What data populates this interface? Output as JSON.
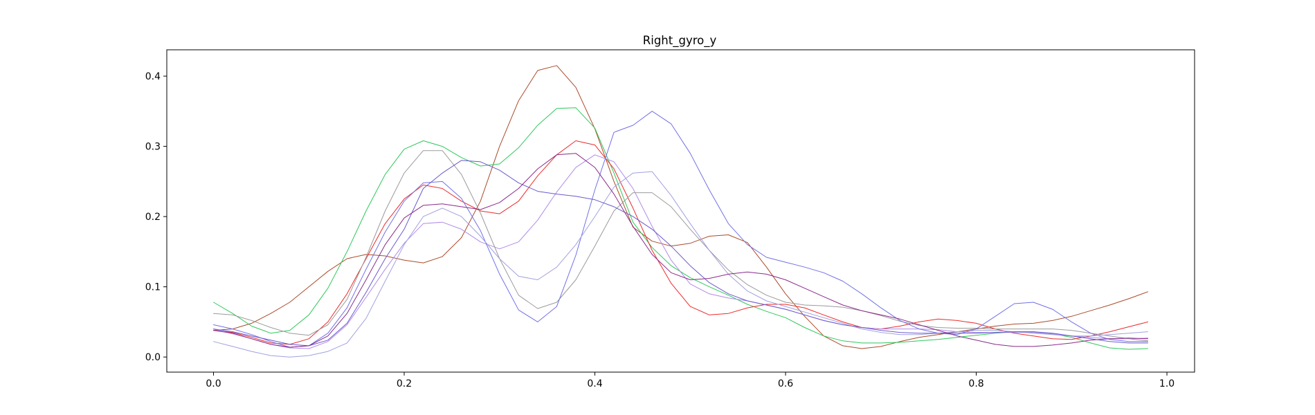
{
  "chart_data": {
    "type": "line",
    "title": "Right_gyro_y",
    "xlabel": "",
    "ylabel": "",
    "xlim": [
      -0.049,
      1.029
    ],
    "ylim": [
      -0.0215,
      0.4375
    ],
    "xticks": [
      0.0,
      0.2,
      0.4,
      0.6,
      0.8,
      1.0
    ],
    "xtick_labels": [
      "0.0",
      "0.2",
      "0.4",
      "0.6",
      "0.8",
      "1.0"
    ],
    "yticks": [
      0.0,
      0.1,
      0.2,
      0.3,
      0.4
    ],
    "ytick_labels": [
      "0.0",
      "0.1",
      "0.2",
      "0.3",
      "0.4"
    ],
    "grid": false,
    "legend": "none",
    "x": [
      0.0,
      0.02,
      0.04,
      0.06,
      0.08,
      0.1,
      0.12,
      0.14,
      0.16,
      0.18,
      0.2,
      0.22,
      0.24,
      0.26,
      0.28,
      0.3,
      0.32,
      0.34,
      0.36,
      0.38,
      0.4,
      0.42,
      0.44,
      0.46,
      0.48,
      0.5,
      0.52,
      0.54,
      0.56,
      0.58,
      0.6,
      0.62,
      0.64,
      0.66,
      0.68,
      0.7,
      0.72,
      0.74,
      0.76,
      0.78,
      0.8,
      0.82,
      0.84,
      0.86,
      0.88,
      0.9,
      0.92,
      0.94,
      0.96,
      0.98
    ],
    "series": [
      {
        "color": "#aa4a2a",
        "values": [
          0.038,
          0.04,
          0.048,
          0.062,
          0.078,
          0.1,
          0.122,
          0.14,
          0.146,
          0.144,
          0.138,
          0.134,
          0.143,
          0.17,
          0.222,
          0.3,
          0.365,
          0.408,
          0.415,
          0.384,
          0.325,
          0.25,
          0.185,
          0.165,
          0.158,
          0.162,
          0.172,
          0.174,
          0.163,
          0.128,
          0.09,
          0.058,
          0.03,
          0.016,
          0.012,
          0.015,
          0.022,
          0.028,
          0.032,
          0.036,
          0.04,
          0.044,
          0.047,
          0.048,
          0.052,
          0.058,
          0.066,
          0.074,
          0.083,
          0.093
        ]
      },
      {
        "color": "#2ec85a",
        "values": [
          0.078,
          0.062,
          0.044,
          0.034,
          0.038,
          0.06,
          0.098,
          0.15,
          0.208,
          0.26,
          0.296,
          0.308,
          0.3,
          0.284,
          0.272,
          0.275,
          0.298,
          0.33,
          0.354,
          0.355,
          0.326,
          0.262,
          0.192,
          0.156,
          0.13,
          0.113,
          0.1,
          0.088,
          0.075,
          0.065,
          0.056,
          0.042,
          0.03,
          0.023,
          0.02,
          0.02,
          0.021,
          0.023,
          0.025,
          0.028,
          0.031,
          0.034,
          0.036,
          0.036,
          0.033,
          0.028,
          0.02,
          0.013,
          0.011,
          0.012
        ]
      },
      {
        "color": "#ec2a2a",
        "values": [
          0.038,
          0.035,
          0.028,
          0.02,
          0.018,
          0.026,
          0.05,
          0.09,
          0.14,
          0.19,
          0.225,
          0.245,
          0.24,
          0.222,
          0.208,
          0.204,
          0.222,
          0.258,
          0.288,
          0.308,
          0.302,
          0.268,
          0.212,
          0.152,
          0.105,
          0.072,
          0.06,
          0.062,
          0.07,
          0.075,
          0.075,
          0.07,
          0.06,
          0.05,
          0.042,
          0.04,
          0.044,
          0.05,
          0.054,
          0.052,
          0.048,
          0.04,
          0.034,
          0.03,
          0.026,
          0.025,
          0.03,
          0.036,
          0.043,
          0.05
        ]
      },
      {
        "color": "#b08ae8",
        "values": [
          0.04,
          0.033,
          0.026,
          0.018,
          0.013,
          0.012,
          0.022,
          0.046,
          0.085,
          0.125,
          0.162,
          0.19,
          0.192,
          0.182,
          0.164,
          0.154,
          0.164,
          0.195,
          0.235,
          0.27,
          0.288,
          0.278,
          0.24,
          0.186,
          0.138,
          0.104,
          0.09,
          0.084,
          0.08,
          0.074,
          0.068,
          0.06,
          0.052,
          0.046,
          0.042,
          0.04,
          0.04,
          0.04,
          0.039,
          0.036,
          0.035,
          0.035,
          0.035,
          0.035,
          0.033,
          0.03,
          0.028,
          0.026,
          0.026,
          0.027
        ]
      },
      {
        "color": "#9a9a9a",
        "values": [
          0.062,
          0.06,
          0.052,
          0.042,
          0.034,
          0.031,
          0.046,
          0.082,
          0.142,
          0.208,
          0.262,
          0.294,
          0.294,
          0.26,
          0.205,
          0.14,
          0.088,
          0.069,
          0.078,
          0.11,
          0.158,
          0.208,
          0.234,
          0.234,
          0.214,
          0.182,
          0.152,
          0.124,
          0.103,
          0.088,
          0.078,
          0.074,
          0.073,
          0.071,
          0.066,
          0.059,
          0.051,
          0.045,
          0.042,
          0.041,
          0.041,
          0.04,
          0.04,
          0.04,
          0.04,
          0.038,
          0.034,
          0.03,
          0.026,
          0.023
        ]
      },
      {
        "color": "#7070e8",
        "values": [
          0.046,
          0.04,
          0.032,
          0.022,
          0.014,
          0.016,
          0.034,
          0.07,
          0.125,
          0.178,
          0.222,
          0.248,
          0.25,
          0.226,
          0.18,
          0.118,
          0.067,
          0.05,
          0.072,
          0.145,
          0.238,
          0.32,
          0.33,
          0.35,
          0.332,
          0.29,
          0.238,
          0.19,
          0.16,
          0.142,
          0.135,
          0.128,
          0.12,
          0.108,
          0.09,
          0.07,
          0.052,
          0.04,
          0.034,
          0.032,
          0.04,
          0.058,
          0.076,
          0.078,
          0.068,
          0.05,
          0.034,
          0.025,
          0.022,
          0.022
        ]
      },
      {
        "color": "#a0a0e0",
        "values": [
          0.022,
          0.015,
          0.008,
          0.002,
          0.0,
          0.002,
          0.008,
          0.02,
          0.055,
          0.108,
          0.16,
          0.2,
          0.212,
          0.2,
          0.172,
          0.14,
          0.115,
          0.11,
          0.128,
          0.16,
          0.2,
          0.242,
          0.262,
          0.264,
          0.23,
          0.19,
          0.152,
          0.118,
          0.094,
          0.08,
          0.072,
          0.064,
          0.056,
          0.048,
          0.04,
          0.035,
          0.032,
          0.032,
          0.034,
          0.036,
          0.038,
          0.038,
          0.036,
          0.034,
          0.032,
          0.03,
          0.03,
          0.032,
          0.034,
          0.036
        ]
      },
      {
        "color": "#6a5acd",
        "values": [
          0.04,
          0.036,
          0.03,
          0.024,
          0.018,
          0.016,
          0.024,
          0.048,
          0.092,
          0.14,
          0.182,
          0.24,
          0.262,
          0.28,
          0.278,
          0.266,
          0.248,
          0.236,
          0.232,
          0.229,
          0.224,
          0.214,
          0.2,
          0.182,
          0.158,
          0.13,
          0.106,
          0.09,
          0.08,
          0.074,
          0.068,
          0.06,
          0.052,
          0.046,
          0.042,
          0.038,
          0.035,
          0.034,
          0.034,
          0.034,
          0.034,
          0.035,
          0.036,
          0.036,
          0.034,
          0.03,
          0.026,
          0.022,
          0.02,
          0.02
        ]
      },
      {
        "color": "#8a2a8a",
        "values": [
          0.038,
          0.034,
          0.026,
          0.018,
          0.014,
          0.016,
          0.03,
          0.062,
          0.11,
          0.16,
          0.198,
          0.216,
          0.218,
          0.214,
          0.21,
          0.22,
          0.24,
          0.268,
          0.288,
          0.29,
          0.27,
          0.232,
          0.186,
          0.146,
          0.12,
          0.11,
          0.112,
          0.118,
          0.121,
          0.118,
          0.11,
          0.098,
          0.086,
          0.074,
          0.066,
          0.06,
          0.054,
          0.046,
          0.038,
          0.03,
          0.024,
          0.018,
          0.015,
          0.015,
          0.017,
          0.02,
          0.024,
          0.026,
          0.027,
          0.026
        ]
      }
    ]
  }
}
